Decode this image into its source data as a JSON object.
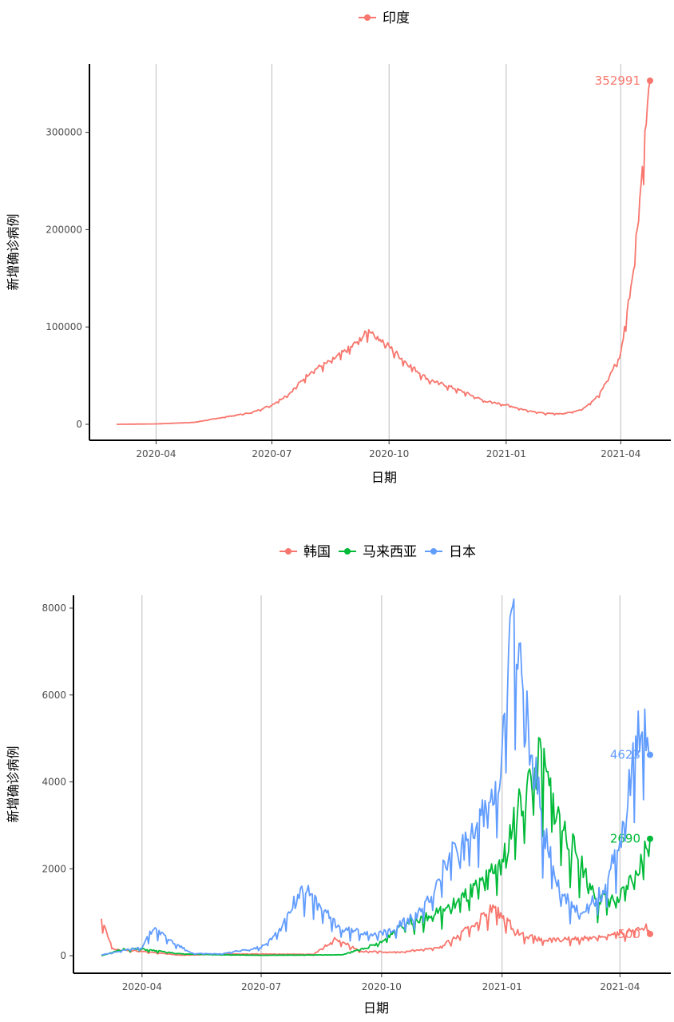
{
  "colors": {
    "india": "#F8766D",
    "korea": "#F8766D",
    "malaysia": "#00BA38",
    "japan": "#619CFF",
    "grid": "#bdbdbd",
    "axis": "#000000"
  },
  "chart_data": [
    {
      "type": "line",
      "xlabel": "日期",
      "ylabel": "新增确诊病例",
      "x_tick_labels": [
        "2020-04",
        "2020-07",
        "2020-10",
        "2021-01",
        "2021-04"
      ],
      "y_tick_labels": [
        "0",
        "100000",
        "200000",
        "300000"
      ],
      "y_ticks": [
        0,
        100000,
        200000,
        300000
      ],
      "x_range": [
        "2020-03-01",
        "2021-04-24"
      ],
      "ylim": [
        0,
        352991
      ],
      "grid": "vertical major",
      "legend_position": "top",
      "legend": [
        "印度"
      ],
      "series": [
        {
          "name": "印度",
          "color": "#F8766D",
          "end_label": "352991",
          "points": [
            [
              "2020-03-01",
              0
            ],
            [
              "2020-04-01",
              400
            ],
            [
              "2020-05-01",
              2000
            ],
            [
              "2020-06-01",
              9000
            ],
            [
              "2020-06-15",
              12000
            ],
            [
              "2020-07-01",
              20000
            ],
            [
              "2020-07-15",
              32000
            ],
            [
              "2020-08-01",
              55000
            ],
            [
              "2020-08-15",
              64000
            ],
            [
              "2020-09-01",
              79000
            ],
            [
              "2020-09-16",
              97000
            ],
            [
              "2020-10-01",
              80000
            ],
            [
              "2020-10-15",
              63000
            ],
            [
              "2020-11-01",
              46000
            ],
            [
              "2020-11-15",
              40000
            ],
            [
              "2020-12-01",
              32000
            ],
            [
              "2020-12-15",
              24000
            ],
            [
              "2021-01-01",
              20000
            ],
            [
              "2021-01-15",
              15000
            ],
            [
              "2021-02-01",
              11000
            ],
            [
              "2021-02-15",
              11000
            ],
            [
              "2021-03-01",
              15000
            ],
            [
              "2021-03-15",
              30000
            ],
            [
              "2021-04-01",
              72000
            ],
            [
              "2021-04-10",
              152000
            ],
            [
              "2021-04-15",
              217000
            ],
            [
              "2021-04-20",
              295000
            ],
            [
              "2021-04-24",
              352991
            ]
          ]
        }
      ]
    },
    {
      "type": "line",
      "xlabel": "日期",
      "ylabel": "新增确诊病例",
      "x_tick_labels": [
        "2020-04",
        "2020-07",
        "2020-10",
        "2021-01",
        "2021-04"
      ],
      "y_tick_labels": [
        "0",
        "2000",
        "4000",
        "6000",
        "8000"
      ],
      "y_ticks": [
        0,
        2000,
        4000,
        6000,
        8000
      ],
      "x_range": [
        "2020-03-01",
        "2021-04-24"
      ],
      "ylim": [
        0,
        8000
      ],
      "grid": "vertical major",
      "legend_position": "top",
      "legend": [
        "韩国",
        "马来西亚",
        "日本"
      ],
      "series": [
        {
          "name": "韩国",
          "color": "#F8766D",
          "end_label": "500",
          "points": [
            [
              "2020-03-01",
              800
            ],
            [
              "2020-03-05",
              500
            ],
            [
              "2020-03-10",
              150
            ],
            [
              "2020-04-01",
              100
            ],
            [
              "2020-05-01",
              10
            ],
            [
              "2020-06-01",
              40
            ],
            [
              "2020-07-01",
              40
            ],
            [
              "2020-08-10",
              30
            ],
            [
              "2020-08-27",
              400
            ],
            [
              "2020-09-15",
              100
            ],
            [
              "2020-10-15",
              80
            ],
            [
              "2020-11-15",
              200
            ],
            [
              "2020-12-01",
              500
            ],
            [
              "2020-12-25",
              1100
            ],
            [
              "2021-01-01",
              900
            ],
            [
              "2021-01-15",
              500
            ],
            [
              "2021-02-01",
              350
            ],
            [
              "2021-03-01",
              400
            ],
            [
              "2021-04-01",
              500
            ],
            [
              "2021-04-20",
              700
            ],
            [
              "2021-04-24",
              500
            ]
          ]
        },
        {
          "name": "马来西亚",
          "color": "#00BA38",
          "end_label": "2690",
          "points": [
            [
              "2020-03-01",
              0
            ],
            [
              "2020-03-18",
              150
            ],
            [
              "2020-04-01",
              150
            ],
            [
              "2020-05-01",
              40
            ],
            [
              "2020-06-01",
              20
            ],
            [
              "2020-07-01",
              10
            ],
            [
              "2020-09-01",
              20
            ],
            [
              "2020-10-01",
              300
            ],
            [
              "2020-10-15",
              700
            ],
            [
              "2020-11-01",
              900
            ],
            [
              "2020-11-15",
              1000
            ],
            [
              "2020-12-01",
              1300
            ],
            [
              "2020-12-15",
              1600
            ],
            [
              "2021-01-01",
              2200
            ],
            [
              "2021-01-15",
              3500
            ],
            [
              "2021-01-30",
              4500
            ],
            [
              "2021-02-15",
              3000
            ],
            [
              "2021-03-01",
              2200
            ],
            [
              "2021-03-15",
              1300
            ],
            [
              "2021-04-01",
              1300
            ],
            [
              "2021-04-15",
              2000
            ],
            [
              "2021-04-24",
              2690
            ]
          ]
        },
        {
          "name": "日本",
          "color": "#619CFF",
          "end_label": "4623",
          "points": [
            [
              "2020-03-01",
              20
            ],
            [
              "2020-04-01",
              200
            ],
            [
              "2020-04-10",
              650
            ],
            [
              "2020-04-25",
              300
            ],
            [
              "2020-05-10",
              50
            ],
            [
              "2020-06-01",
              40
            ],
            [
              "2020-07-01",
              200
            ],
            [
              "2020-07-15",
              600
            ],
            [
              "2020-08-01",
              1600
            ],
            [
              "2020-08-15",
              1100
            ],
            [
              "2020-09-01",
              600
            ],
            [
              "2020-10-01",
              500
            ],
            [
              "2020-11-01",
              1000
            ],
            [
              "2020-11-20",
              2200
            ],
            [
              "2020-12-10",
              2700
            ],
            [
              "2021-01-01",
              4500
            ],
            [
              "2021-01-08",
              7800
            ],
            [
              "2021-01-20",
              5500
            ],
            [
              "2021-02-01",
              3000
            ],
            [
              "2021-02-15",
              1400
            ],
            [
              "2021-03-01",
              1000
            ],
            [
              "2021-03-20",
              1500
            ],
            [
              "2021-04-01",
              2700
            ],
            [
              "2021-04-15",
              5000
            ],
            [
              "2021-04-20",
              5500
            ],
            [
              "2021-04-24",
              4623
            ]
          ]
        }
      ]
    }
  ]
}
